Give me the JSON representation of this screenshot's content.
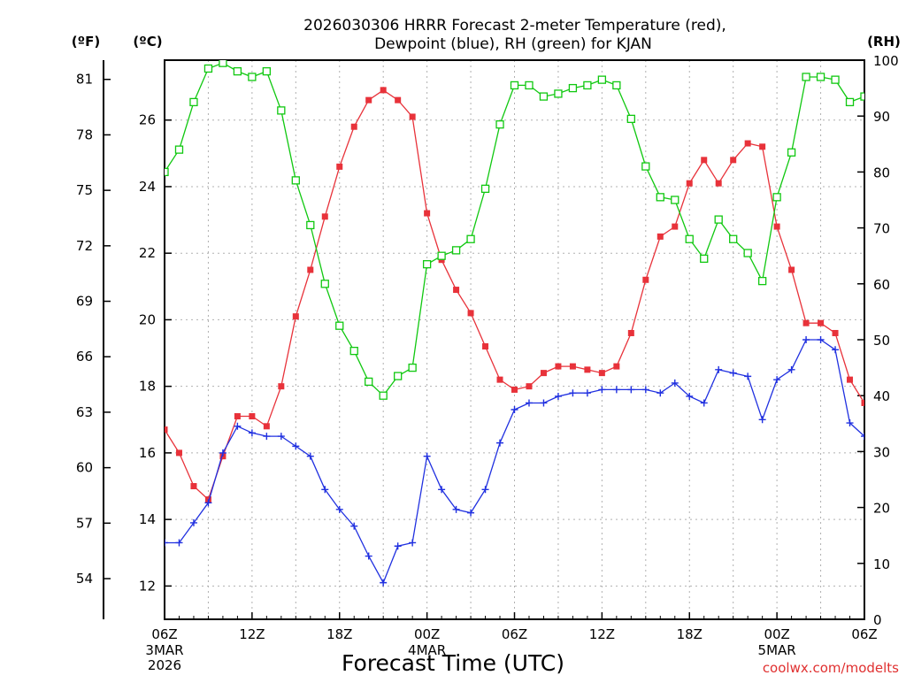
{
  "chart_data": {
    "type": "line",
    "title_line1": "2026030306 HRRR Forecast 2-meter Temperature (red),",
    "title_line2": "Dewpoint (blue), RH (green) for KJAN",
    "xlabel": "Forecast Time (UTC)",
    "credit": "coolwx.com/modelts",
    "units": {
      "fahrenheit": "(ºF)",
      "celsius": "(ºC)",
      "rh": "(RH)"
    },
    "x_start_hour": 0,
    "x_end_hour": 48,
    "x_ticks": [
      {
        "hour": 0,
        "label": "06Z",
        "date1": "3MAR",
        "date2": "2026"
      },
      {
        "hour": 6,
        "label": "12Z"
      },
      {
        "hour": 12,
        "label": "18Z"
      },
      {
        "hour": 18,
        "label": "00Z",
        "date1": "4MAR"
      },
      {
        "hour": 24,
        "label": "06Z"
      },
      {
        "hour": 30,
        "label": "12Z"
      },
      {
        "hour": 36,
        "label": "18Z"
      },
      {
        "hour": 42,
        "label": "00Z",
        "date1": "5MAR"
      },
      {
        "hour": 48,
        "label": "06Z"
      }
    ],
    "celsius_axis": {
      "min": 11.0,
      "max": 27.8,
      "ticks": [
        12,
        14,
        16,
        18,
        20,
        22,
        24,
        26
      ]
    },
    "fahrenheit_axis": {
      "ticks": [
        54,
        57,
        60,
        63,
        66,
        69,
        72,
        75,
        78,
        81
      ]
    },
    "rh_axis": {
      "min": 0,
      "max": 100,
      "ticks": [
        0,
        10,
        20,
        30,
        40,
        50,
        60,
        70,
        80,
        90,
        100
      ]
    },
    "grid": true,
    "series": [
      {
        "name": "Temperature",
        "color": "#e8323a",
        "marker": "filled-square",
        "axis": "celsius",
        "values": [
          16.7,
          16.0,
          15.0,
          14.6,
          15.9,
          17.1,
          17.1,
          16.8,
          18.0,
          20.1,
          21.5,
          23.1,
          24.6,
          25.8,
          26.6,
          26.9,
          26.6,
          26.1,
          23.2,
          21.8,
          20.9,
          20.2,
          19.2,
          18.2,
          17.9,
          18.0,
          18.4,
          18.6,
          18.6,
          18.5,
          18.4,
          18.6,
          19.6,
          21.2,
          22.5,
          22.8,
          24.1,
          24.8,
          24.1,
          24.8,
          25.3,
          25.2,
          22.8,
          21.5,
          19.9,
          19.9,
          19.6,
          18.2,
          17.5
        ]
      },
      {
        "name": "Dewpoint",
        "color": "#2030e0",
        "marker": "plus",
        "axis": "celsius",
        "values": [
          13.3,
          13.3,
          13.9,
          14.5,
          16.0,
          16.8,
          16.6,
          16.5,
          16.5,
          16.2,
          15.9,
          14.9,
          14.3,
          13.8,
          12.9,
          12.1,
          13.2,
          13.3,
          15.9,
          14.9,
          14.3,
          14.2,
          14.9,
          16.3,
          17.3,
          17.5,
          17.5,
          17.7,
          17.8,
          17.8,
          17.9,
          17.9,
          17.9,
          17.9,
          17.8,
          18.1,
          17.7,
          17.5,
          18.5,
          18.4,
          18.3,
          17.0,
          18.2,
          18.5,
          19.4,
          19.4,
          19.1,
          16.9,
          16.5
        ]
      },
      {
        "name": "RH",
        "color": "#10c810",
        "marker": "open-square",
        "axis": "rh",
        "values": [
          80,
          84,
          92.5,
          98.5,
          99.5,
          98,
          97,
          98,
          91,
          78.5,
          70.5,
          60,
          52.5,
          48,
          42.5,
          40,
          43.5,
          45,
          63.5,
          65,
          66,
          68,
          77,
          88.5,
          95.5,
          95.5,
          93.5,
          94,
          95,
          95.5,
          96.5,
          95.5,
          89.5,
          81,
          75.5,
          75,
          68,
          64.5,
          71.5,
          68,
          65.5,
          60.5,
          75.5,
          83.5,
          97,
          97,
          96.5,
          92.5,
          93.5
        ]
      }
    ]
  }
}
